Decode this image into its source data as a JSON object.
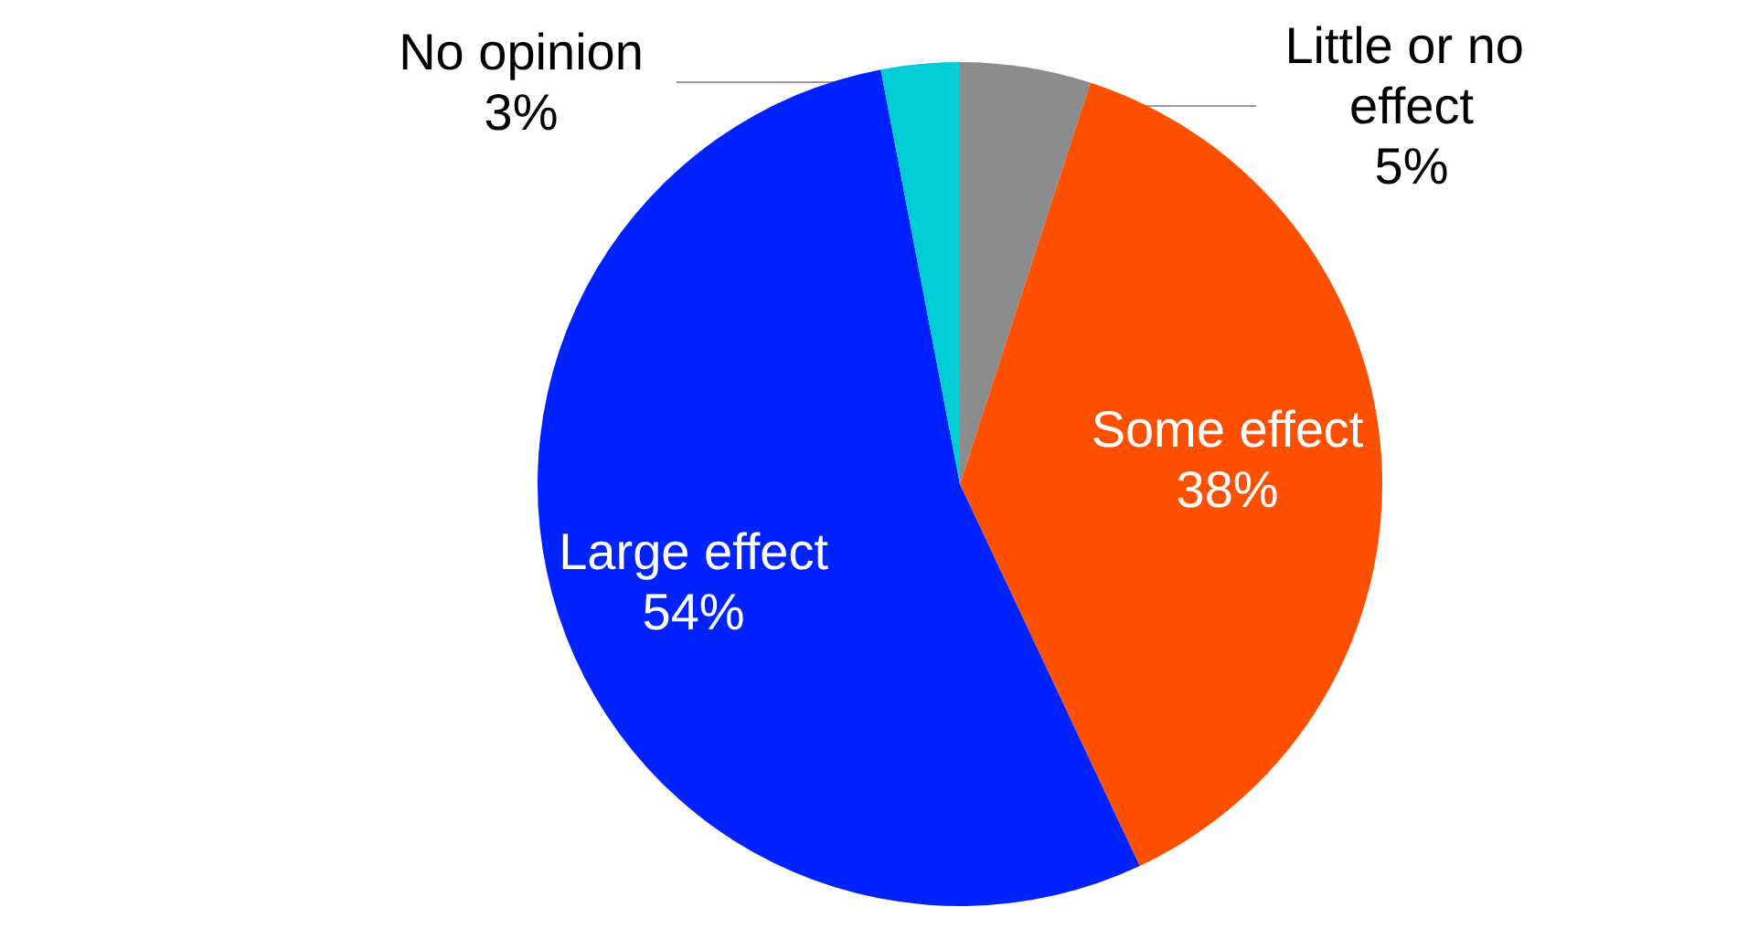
{
  "chart_data": {
    "type": "pie",
    "categories": [
      "Little or no effect",
      "Some effect",
      "Large effect",
      "No opinion"
    ],
    "values": [
      5,
      38,
      54,
      3
    ],
    "value_labels": [
      "5%",
      "38%",
      "54%",
      "3%"
    ],
    "colors": [
      "#8c8c8c",
      "#ff5000",
      "#0022ff",
      "#00cdd6"
    ],
    "legend": false
  }
}
